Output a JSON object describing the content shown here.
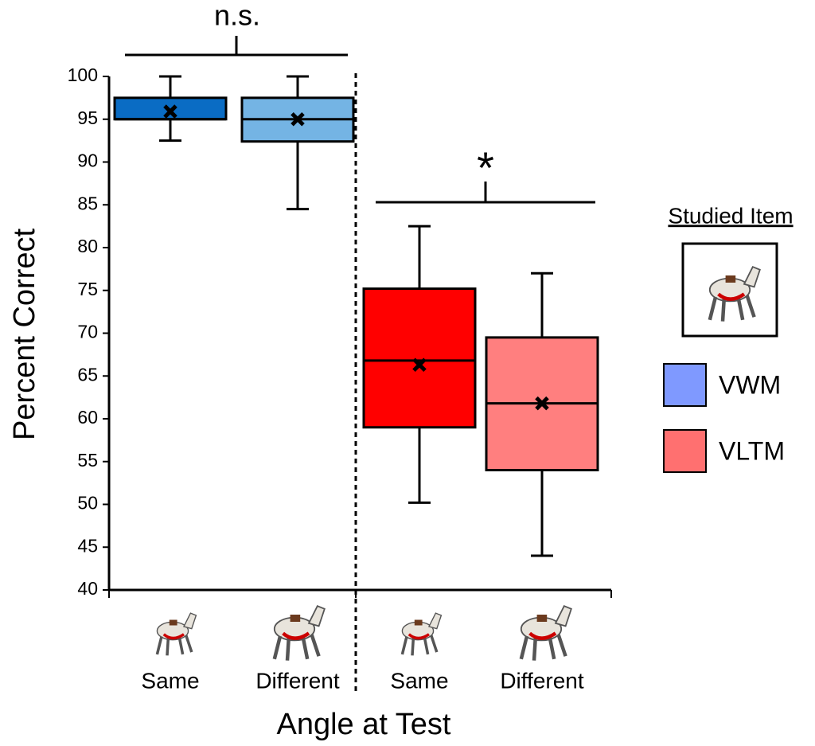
{
  "chart_data": {
    "type": "box",
    "ylabel": "Percent Correct",
    "xlabel": "Angle at Test",
    "categories": [
      "Same",
      "Different",
      "Same",
      "Different"
    ],
    "ylim": [
      40,
      100
    ],
    "yticks": [
      40,
      45,
      50,
      55,
      60,
      65,
      70,
      75,
      80,
      85,
      90,
      95,
      100
    ],
    "legend_title": "Studied Item",
    "annotations": [
      "n.s.",
      "*"
    ],
    "series": [
      {
        "name": "VWM",
        "color": "#7f99ff",
        "box_colors": [
          "#0a6cc4",
          "#74b4e4"
        ],
        "values": [
          {
            "min": 92.5,
            "q1": 95,
            "median": 95,
            "q3": 97.5,
            "max": 100,
            "mean": 95.9
          },
          {
            "min": 84.5,
            "q1": 92.4,
            "median": 95,
            "q3": 97.5,
            "max": 100,
            "mean": 95
          }
        ]
      },
      {
        "name": "VLTM",
        "color": "#ff7070",
        "box_colors": [
          "#ff0000",
          "#ff7f7f"
        ],
        "values": [
          {
            "min": 50.2,
            "q1": 59,
            "median": 66.8,
            "q3": 75.2,
            "max": 82.5,
            "mean": 66.3
          },
          {
            "min": 44,
            "q1": 54,
            "median": 61.8,
            "q3": 69.5,
            "max": 77,
            "mean": 61.8
          }
        ]
      }
    ]
  }
}
